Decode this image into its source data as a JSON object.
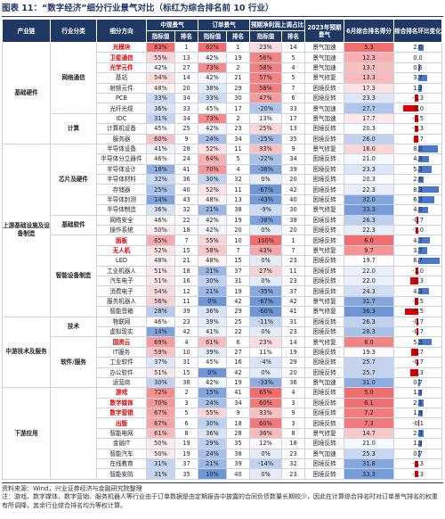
{
  "header": {
    "title": "图表 11：“数字经济”细分行业景气对比（标红为综合排名前 10 行业）",
    "chain": "产业链",
    "category": "行业分类",
    "sub": "细分方向",
    "groups": [
      {
        "name": "中观景气",
        "cols": [
          "指标值",
          "排名"
        ]
      },
      {
        "name": "订单景气",
        "cols": [
          "指标值",
          "排名"
        ]
      },
      {
        "name": "预期净利润上调占比",
        "cols": [
          "指标值",
          "排名"
        ]
      }
    ],
    "expect": "2023年预期景气",
    "score": "6月综合排名得分",
    "change": "综合排名环比变化"
  },
  "table": {
    "chains": [
      {
        "name": "基础硬件",
        "categories": [
          {
            "name": "网络通信",
            "rows": [
              {
                "name": "光模块",
                "highlight": true,
                "values": [
                  "83%",
                  "1",
                  "82%",
                  "1",
                  "23%",
                  "14",
                  "景气加速",
                  "5.3",
                  "2.0"
                ]
              },
              {
                "name": "卫星通信",
                "highlight": true,
                "values": [
                  "55%",
                  "13",
                  "42%",
                  "19",
                  "56%",
                  "5",
                  "景气加速",
                  "12.3",
                  "0.0"
                ]
              },
              {
                "name": "光学元件",
                "highlight": true,
                "values": [
                  "42%",
                  "27",
                  "73%",
                  "2",
                  "58%",
                  "4",
                  "景气加速",
                  "13.7",
                  "0.6"
                ]
              },
              {
                "name": "基站",
                "highlight": false,
                "values": [
                  "54%",
                  "14",
                  "42%",
                  "21",
                  "57%",
                  "5",
                  "景气修复",
                  "13.3",
                  "3.7"
                ]
              },
              {
                "name": "射频元件",
                "highlight": false,
                "values": [
                  "48%",
                  "20",
                  "38%",
                  "29",
                  "58%",
                  "7",
                  "困境反转",
                  "17.3",
                  "1.3"
                ]
              },
              {
                "name": "PCB",
                "highlight": false,
                "values": [
                  "33%",
                  "34",
                  "33%",
                  "30",
                  "47%",
                  "6",
                  "困境反转",
                  "23.3",
                  "-1.3"
                ]
              },
              {
                "name": "光纤光缆",
                "highlight": false,
                "values": [
                  "36%",
                  "33",
                  "45%",
                  "17",
                  "-20%",
                  "33",
                  "景气加速",
                  "27.7",
                  "-6.0"
                ]
              }
            ]
          },
          {
            "name": "计算",
            "rows": [
              {
                "name": "IDC",
                "highlight": false,
                "values": [
                  "31%",
                  "34",
                  "73%",
                  "2",
                  "13%",
                  "17",
                  "景气加速",
                  "17.7",
                  "-1.5"
                ]
              },
              {
                "name": "计算机设备",
                "highlight": false,
                "values": [
                  "45%",
                  "25",
                  "42%",
                  "23",
                  "25%",
                  "13",
                  "困境反转",
                  "20.3",
                  "-1.3"
                ]
              },
              {
                "name": "服务器",
                "highlight": false,
                "values": [
                  "60%",
                  "9",
                  "24%",
                  "34",
                  "-25%",
                  "35",
                  "困境反转",
                  "26.0",
                  "-1.7"
                ]
              }
            ]
          }
        ]
      },
      {
        "name": "上游基础设施及设备制造",
        "categories": [
          {
            "name": "芯片及硬件",
            "rows": [
              {
                "name": "半导体设备",
                "highlight": false,
                "values": [
                  "41%",
                  "28",
                  "52%",
                  "11",
                  "33%",
                  "9",
                  "景气修复",
                  "16.0",
                  "8.0"
                ]
              },
              {
                "name": "半导体分立器件",
                "highlight": false,
                "values": [
                  "46%",
                  "24",
                  "64%",
                  "5",
                  "-22%",
                  "34",
                  "困境反转",
                  "21.0",
                  "4.3"
                ]
              },
              {
                "name": "半导体设计",
                "highlight": false,
                "values": [
                  "18%",
                  "41",
                  "70%",
                  "4",
                  "-38%",
                  "39",
                  "困境反转",
                  "23.3",
                  "5.3"
                ]
              },
              {
                "name": "半导体材料",
                "highlight": false,
                "values": [
                  "32%",
                  "36",
                  "30%",
                  "32",
                  "0%",
                  "20",
                  "困境反转",
                  "20.3",
                  "2.0"
                ]
              },
              {
                "name": "存储器",
                "highlight": false,
                "values": [
                  "25%",
                  "40",
                  "52%",
                  "11",
                  "-67%",
                  "42",
                  "困境反转",
                  "22.3",
                  "8.3"
                ]
              },
              {
                "name": "半导体封测",
                "highlight": false,
                "values": [
                  "14%",
                  "43",
                  "48%",
                  "13",
                  "-43%",
                  "40",
                  "困境反转",
                  "32.0",
                  "6.3"
                ]
              },
              {
                "name": "半导体制造",
                "highlight": false,
                "values": [
                  "36%",
                  "32",
                  "21%",
                  "38",
                  "-9%",
                  "30",
                  "景气修复",
                  "33.3",
                  "4.0"
                ]
              }
            ]
          },
          {
            "name": "基础软件",
            "rows": [
              {
                "name": "网络安全",
                "highlight": false,
                "values": [
                  "46%",
                  "22",
                  "42%",
                  "19",
                  "-38%",
                  "38",
                  "困境反转",
                  "26.3",
                  "-0.7"
                ]
              },
              {
                "name": "操作系统",
                "highlight": false,
                "values": [
                  "50%",
                  "18",
                  "42%",
                  "20",
                  "0%",
                  "20",
                  "困境反转",
                  "22.3",
                  "-1.0"
                ]
              }
            ]
          },
          {
            "name": "智能设备制造",
            "rows": [
              {
                "name": "面板",
                "highlight": true,
                "values": [
                  "65%",
                  "7",
                  "55%",
                  "10",
                  "100%",
                  "1",
                  "困境反转",
                  "6.0",
                  "4.7"
                ]
              },
              {
                "name": "无人机",
                "highlight": true,
                "values": [
                  "52%",
                  "15",
                  "58%",
                  "7",
                  "43%",
                  "7",
                  "景气修复",
                  "9.7",
                  "3.7"
                ]
              },
              {
                "name": "LED",
                "highlight": false,
                "values": [
                  "48%",
                  "21",
                  "48%",
                  "15",
                  "0%",
                  "23",
                  "困境反转",
                  "19.7",
                  "8.7"
                ]
              },
              {
                "name": "工业机器人",
                "highlight": false,
                "values": [
                  "51%",
                  "18",
                  "21%",
                  "37",
                  "27%",
                  "11",
                  "困境反转",
                  "22.0",
                  "-1.0"
                ]
              },
              {
                "name": "汽车电子",
                "highlight": false,
                "values": [
                  "51%",
                  "16",
                  "30%",
                  "31",
                  "0%",
                  "23",
                  "困境反转",
                  "22.0",
                  "-3.3"
                ]
              },
              {
                "name": "消费电子",
                "highlight": false,
                "values": [
                  "54%",
                  "12",
                  "21%",
                  "19",
                  "-35%",
                  "37",
                  "困境反转",
                  "24.3",
                  "4.3"
                ]
              },
              {
                "name": "服务机器人",
                "highlight": false,
                "values": [
                  "56%",
                  "11",
                  "0%",
                  "42",
                  "-67%",
                  "42",
                  "景气修复",
                  "31.7",
                  "-1.5"
                ]
              },
              {
                "name": "智能音箱",
                "highlight": false,
                "values": [
                  "28%",
                  "39",
                  "36%",
                  "29",
                  "-60%",
                  "41",
                  "景气修复",
                  "36.3",
                  "-5.5"
                ]
              }
            ]
          }
        ]
      },
      {
        "name": "中游技术及服务",
        "categories": [
          {
            "name": "技术",
            "rows": [
              {
                "name": "物联网",
                "highlight": false,
                "values": [
                  "46%",
                  "23",
                  "39%",
                  "25",
                  "-11%",
                  "31",
                  "困境反转",
                  "26.3",
                  "-0.7"
                ]
              },
              {
                "name": "虚拟现实",
                "highlight": false,
                "values": [
                  "14%",
                  "42",
                  "41%",
                  "22",
                  "0%",
                  "23",
                  "困境反转",
                  "28.3",
                  "-0.7"
                ]
              }
            ]
          },
          {
            "name": "软件/服务",
            "rows": [
              {
                "name": "国资云",
                "highlight": true,
                "values": [
                  "69%",
                  "4",
                  "61%",
                  "6",
                  "23%",
                  "14",
                  "景气修复",
                  "8.0",
                  "5.3"
                ]
              },
              {
                "name": "IT服务",
                "highlight": false,
                "values": [
                  "59%",
                  "10",
                  "39%",
                  "27",
                  "11%",
                  "19",
                  "困境反转",
                  "19.3",
                  "-2.7"
                ]
              },
              {
                "name": "工业软件",
                "highlight": false,
                "values": [
                  "37%",
                  "31",
                  "45%",
                  "16",
                  "-4%",
                  "29",
                  "困境反转",
                  "25.7",
                  "-0.7"
                ]
              },
              {
                "name": "办公软件",
                "highlight": false,
                "values": [
                  "51%",
                  "15",
                  "0%",
                  "42",
                  "0%",
                  "20",
                  "困境反转",
                  "25.7",
                  "-3.3"
                ]
              },
              {
                "name": "运营商",
                "highlight": false,
                "values": [
                  "30%",
                  "38",
                  "42%",
                  "19",
                  "-33%",
                  "36",
                  "景气加速",
                  "31.0",
                  "0.7"
                ]
              }
            ]
          }
        ]
      },
      {
        "name": "下游应用",
        "categories": [
          {
            "name": "",
            "rows": [
              {
                "name": "游戏",
                "highlight": true,
                "values": [
                  "72%",
                  "2",
                  "15%",
                  "41",
                  "65%",
                  "4",
                  "困境反转",
                  "5.0",
                  "1.3"
                ]
              },
              {
                "name": "数字媒体",
                "highlight": true,
                "values": [
                  "70%",
                  "3",
                  "24%",
                  "34",
                  "60%",
                  "3",
                  "困境反转",
                  "6.1",
                  "2.1"
                ]
              },
              {
                "name": "数字营销",
                "highlight": true,
                "values": [
                  "67%",
                  "5",
                  "55%",
                  "9",
                  "33%",
                  "9",
                  "困境反转",
                  "7.2",
                  "1.9"
                ]
              },
              {
                "name": "出版",
                "highlight": true,
                "values": [
                  "67%",
                  "6",
                  "30%",
                  "18",
                  "60%",
                  "3",
                  "困境反转",
                  "7.3",
                  "-0.1"
                ]
              },
              {
                "name": "智能电网",
                "highlight": false,
                "values": [
                  "61%",
                  "8",
                  "36%",
                  "28",
                  "36%",
                  "8",
                  "景气修复",
                  "14.7",
                  "2.3"
                ]
              },
              {
                "name": "金融IT",
                "highlight": false,
                "values": [
                  "50%",
                  "19",
                  "29%",
                  "35",
                  "12%",
                  "18",
                  "困境反转",
                  "21.0",
                  "1.3"
                ]
              },
              {
                "name": "智能汽车",
                "highlight": false,
                "values": [
                  "50%",
                  "19",
                  "24%",
                  "38",
                  "0%",
                  "23",
                  "景气加速",
                  "25.3",
                  "0.7"
                ]
              },
              {
                "name": "在线教育",
                "highlight": false,
                "values": [
                  "31%",
                  "37",
                  "21%",
                  "39",
                  "-14%",
                  "32",
                  "困境反转",
                  "31.8",
                  "-1.3"
                ]
              },
              {
                "name": "智能安防",
                "highlight": false,
                "values": [
                  "31%",
                  "35",
                  "10%",
                  "40",
                  "0%",
                  "23",
                  "困境反转",
                  "33.3",
                  "-1.3"
                ]
              }
            ]
          }
        ]
      }
    ]
  },
  "footer": {
    "source": "资料来源：Wind，兴业证券经济与金融研究院整理",
    "note": "注：游戏、数字媒体、数字营销、服务机器人等行业由于订单数据是由定期报告中披露的合同负债数量长期较少，因此在计算综合排名时对订单景气排名的权重有所调降，其余行业综合排名均为等权计算。"
  }
}
